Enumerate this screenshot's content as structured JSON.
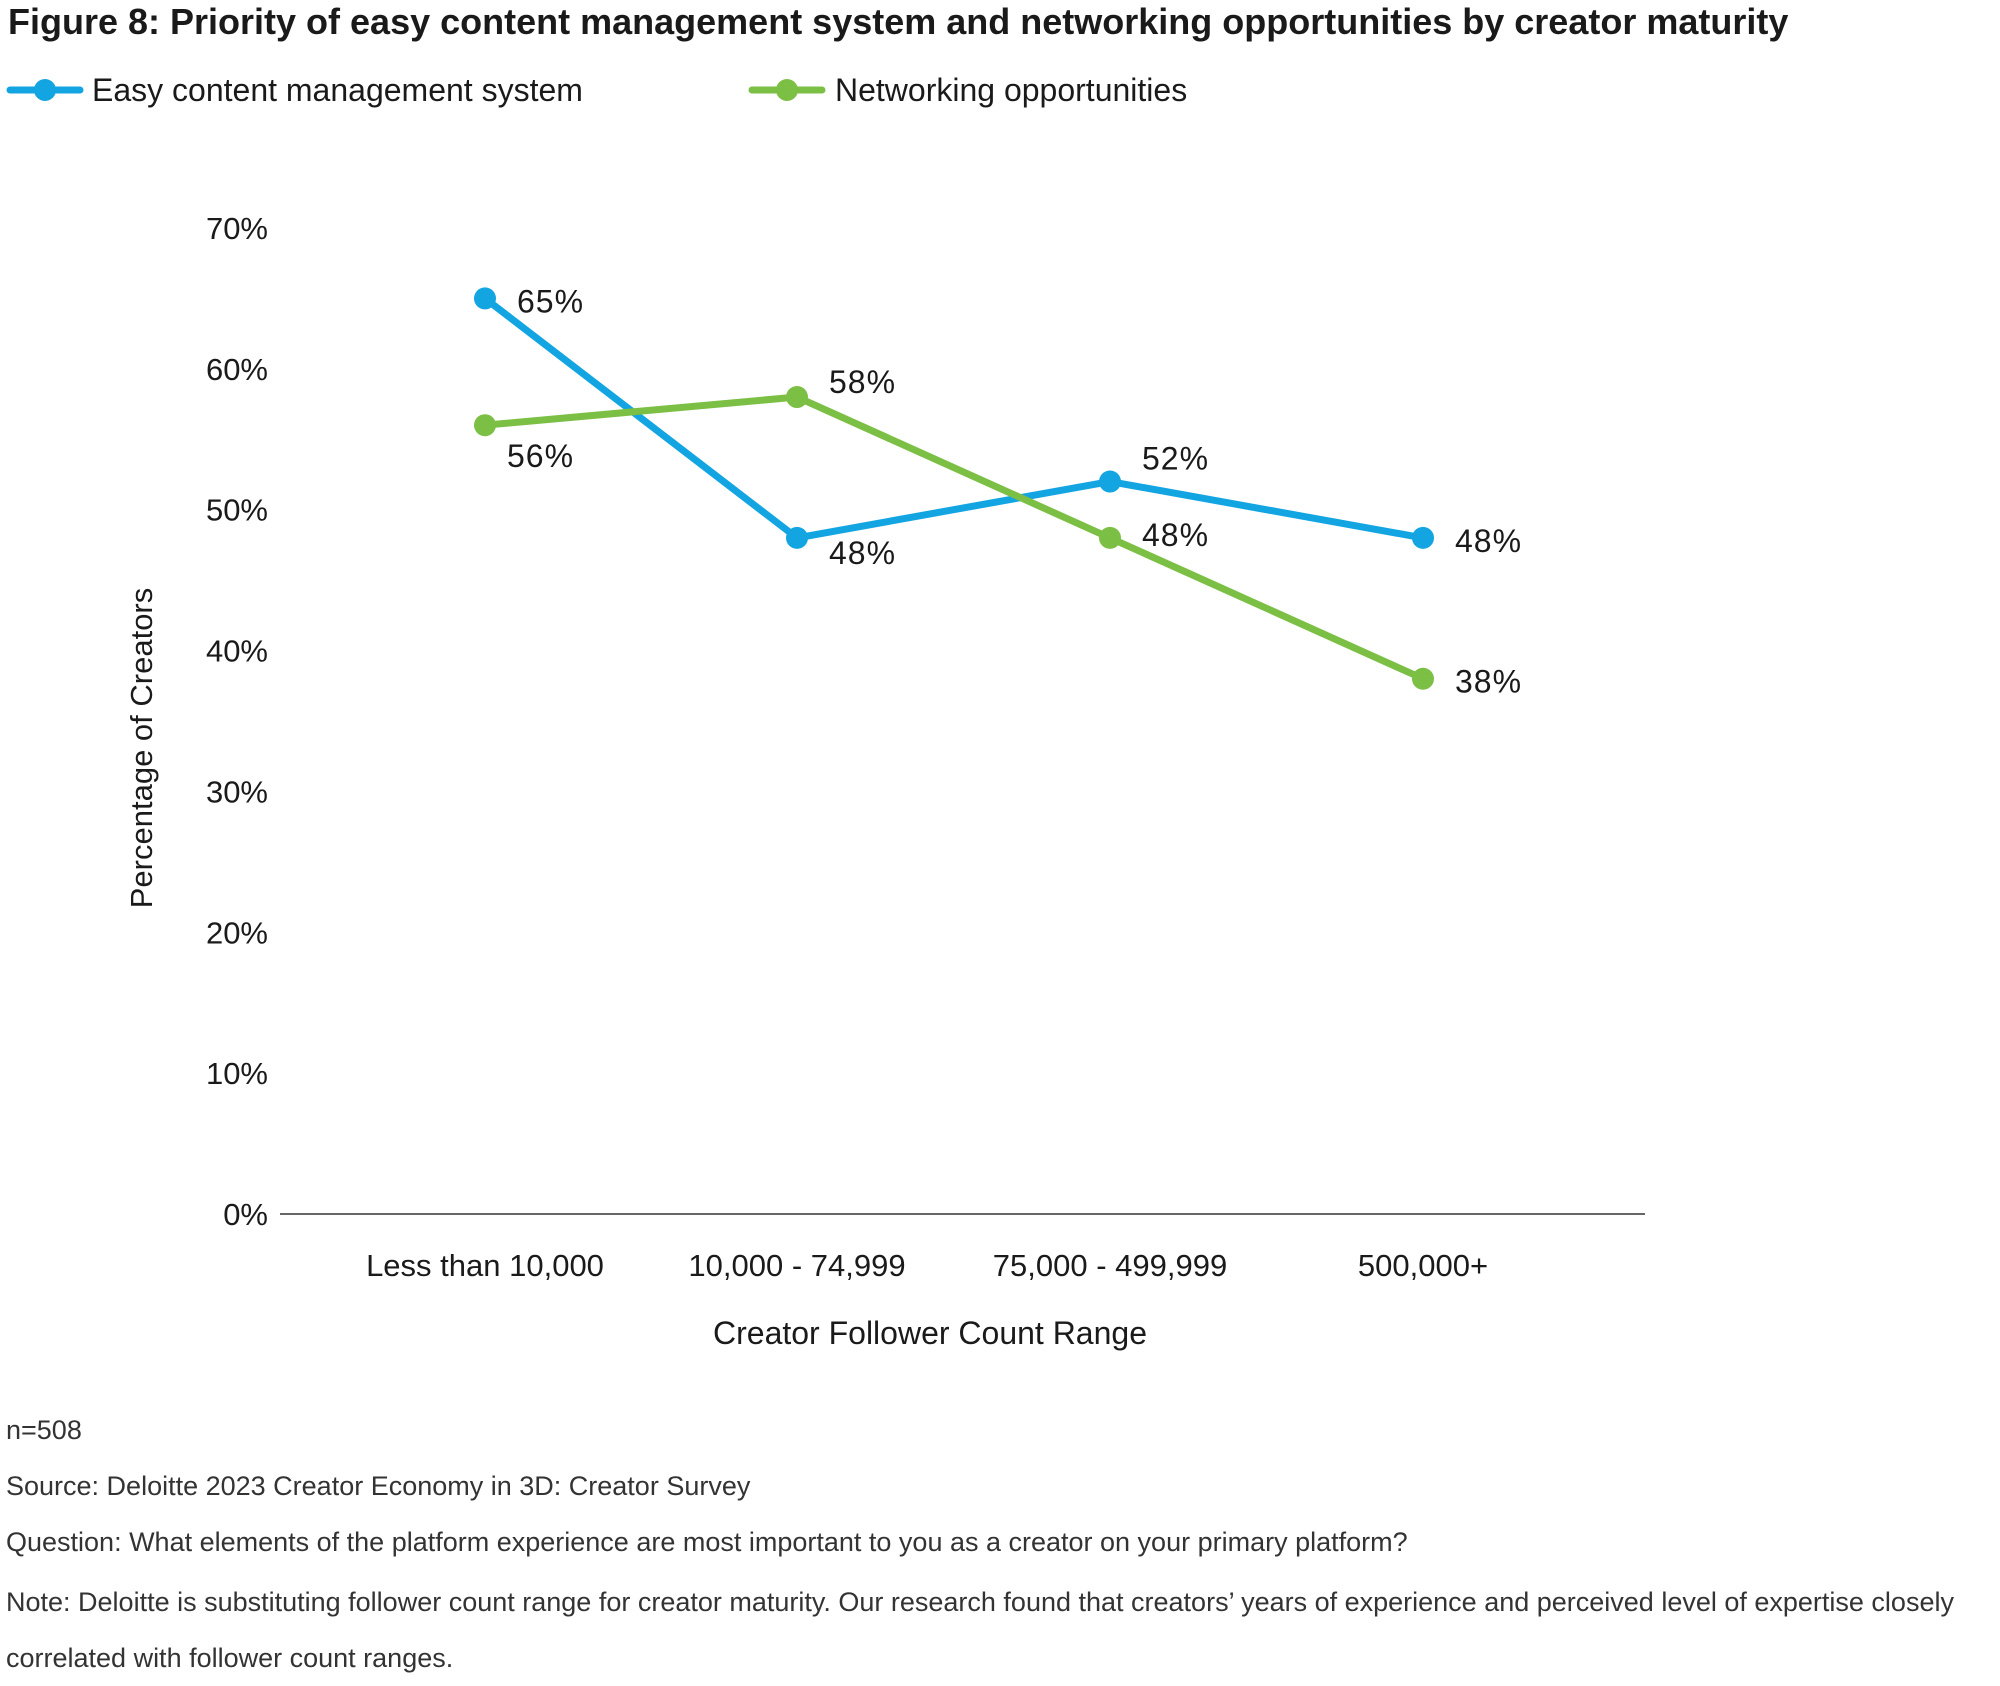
{
  "chart_data": {
    "type": "line",
    "title": "Figure 8: Priority of easy content management system and networking opportunities by creator maturity",
    "xlabel": "Creator Follower Count Range",
    "ylabel": "Percentage of Creators",
    "categories": [
      "Less than 10,000",
      "10,000 - 74,999",
      "75,000 - 499,999",
      "500,000+"
    ],
    "ylim": [
      0,
      70
    ],
    "yticks": [
      0,
      10,
      20,
      30,
      40,
      50,
      60,
      70
    ],
    "ytick_labels": [
      "0%",
      "10%",
      "20%",
      "30%",
      "40%",
      "50%",
      "60%",
      "70%"
    ],
    "grid": false,
    "legend_position": "top-left",
    "series": [
      {
        "name": "Easy content management system",
        "color": "#12A5E2",
        "values": [
          65,
          48,
          52,
          48
        ],
        "labels": [
          "65%",
          "48%",
          "52%",
          "48%"
        ]
      },
      {
        "name": "Networking opportunities",
        "color": "#7BBF44",
        "values": [
          56,
          58,
          48,
          38
        ],
        "labels": [
          "56%",
          "58%",
          "48%",
          "38%"
        ]
      }
    ]
  },
  "footer": {
    "n": "n=508",
    "source": "Source: Deloitte 2023 Creator Economy in 3D: Creator Survey",
    "question": "Question: What elements of the platform experience are most important to you as a creator on your primary platform?",
    "note": "Note: Deloitte is substituting follower count range for creator maturity. Our research found that creators’ years of experience and perceived level of expertise closely correlated with follower count ranges."
  }
}
